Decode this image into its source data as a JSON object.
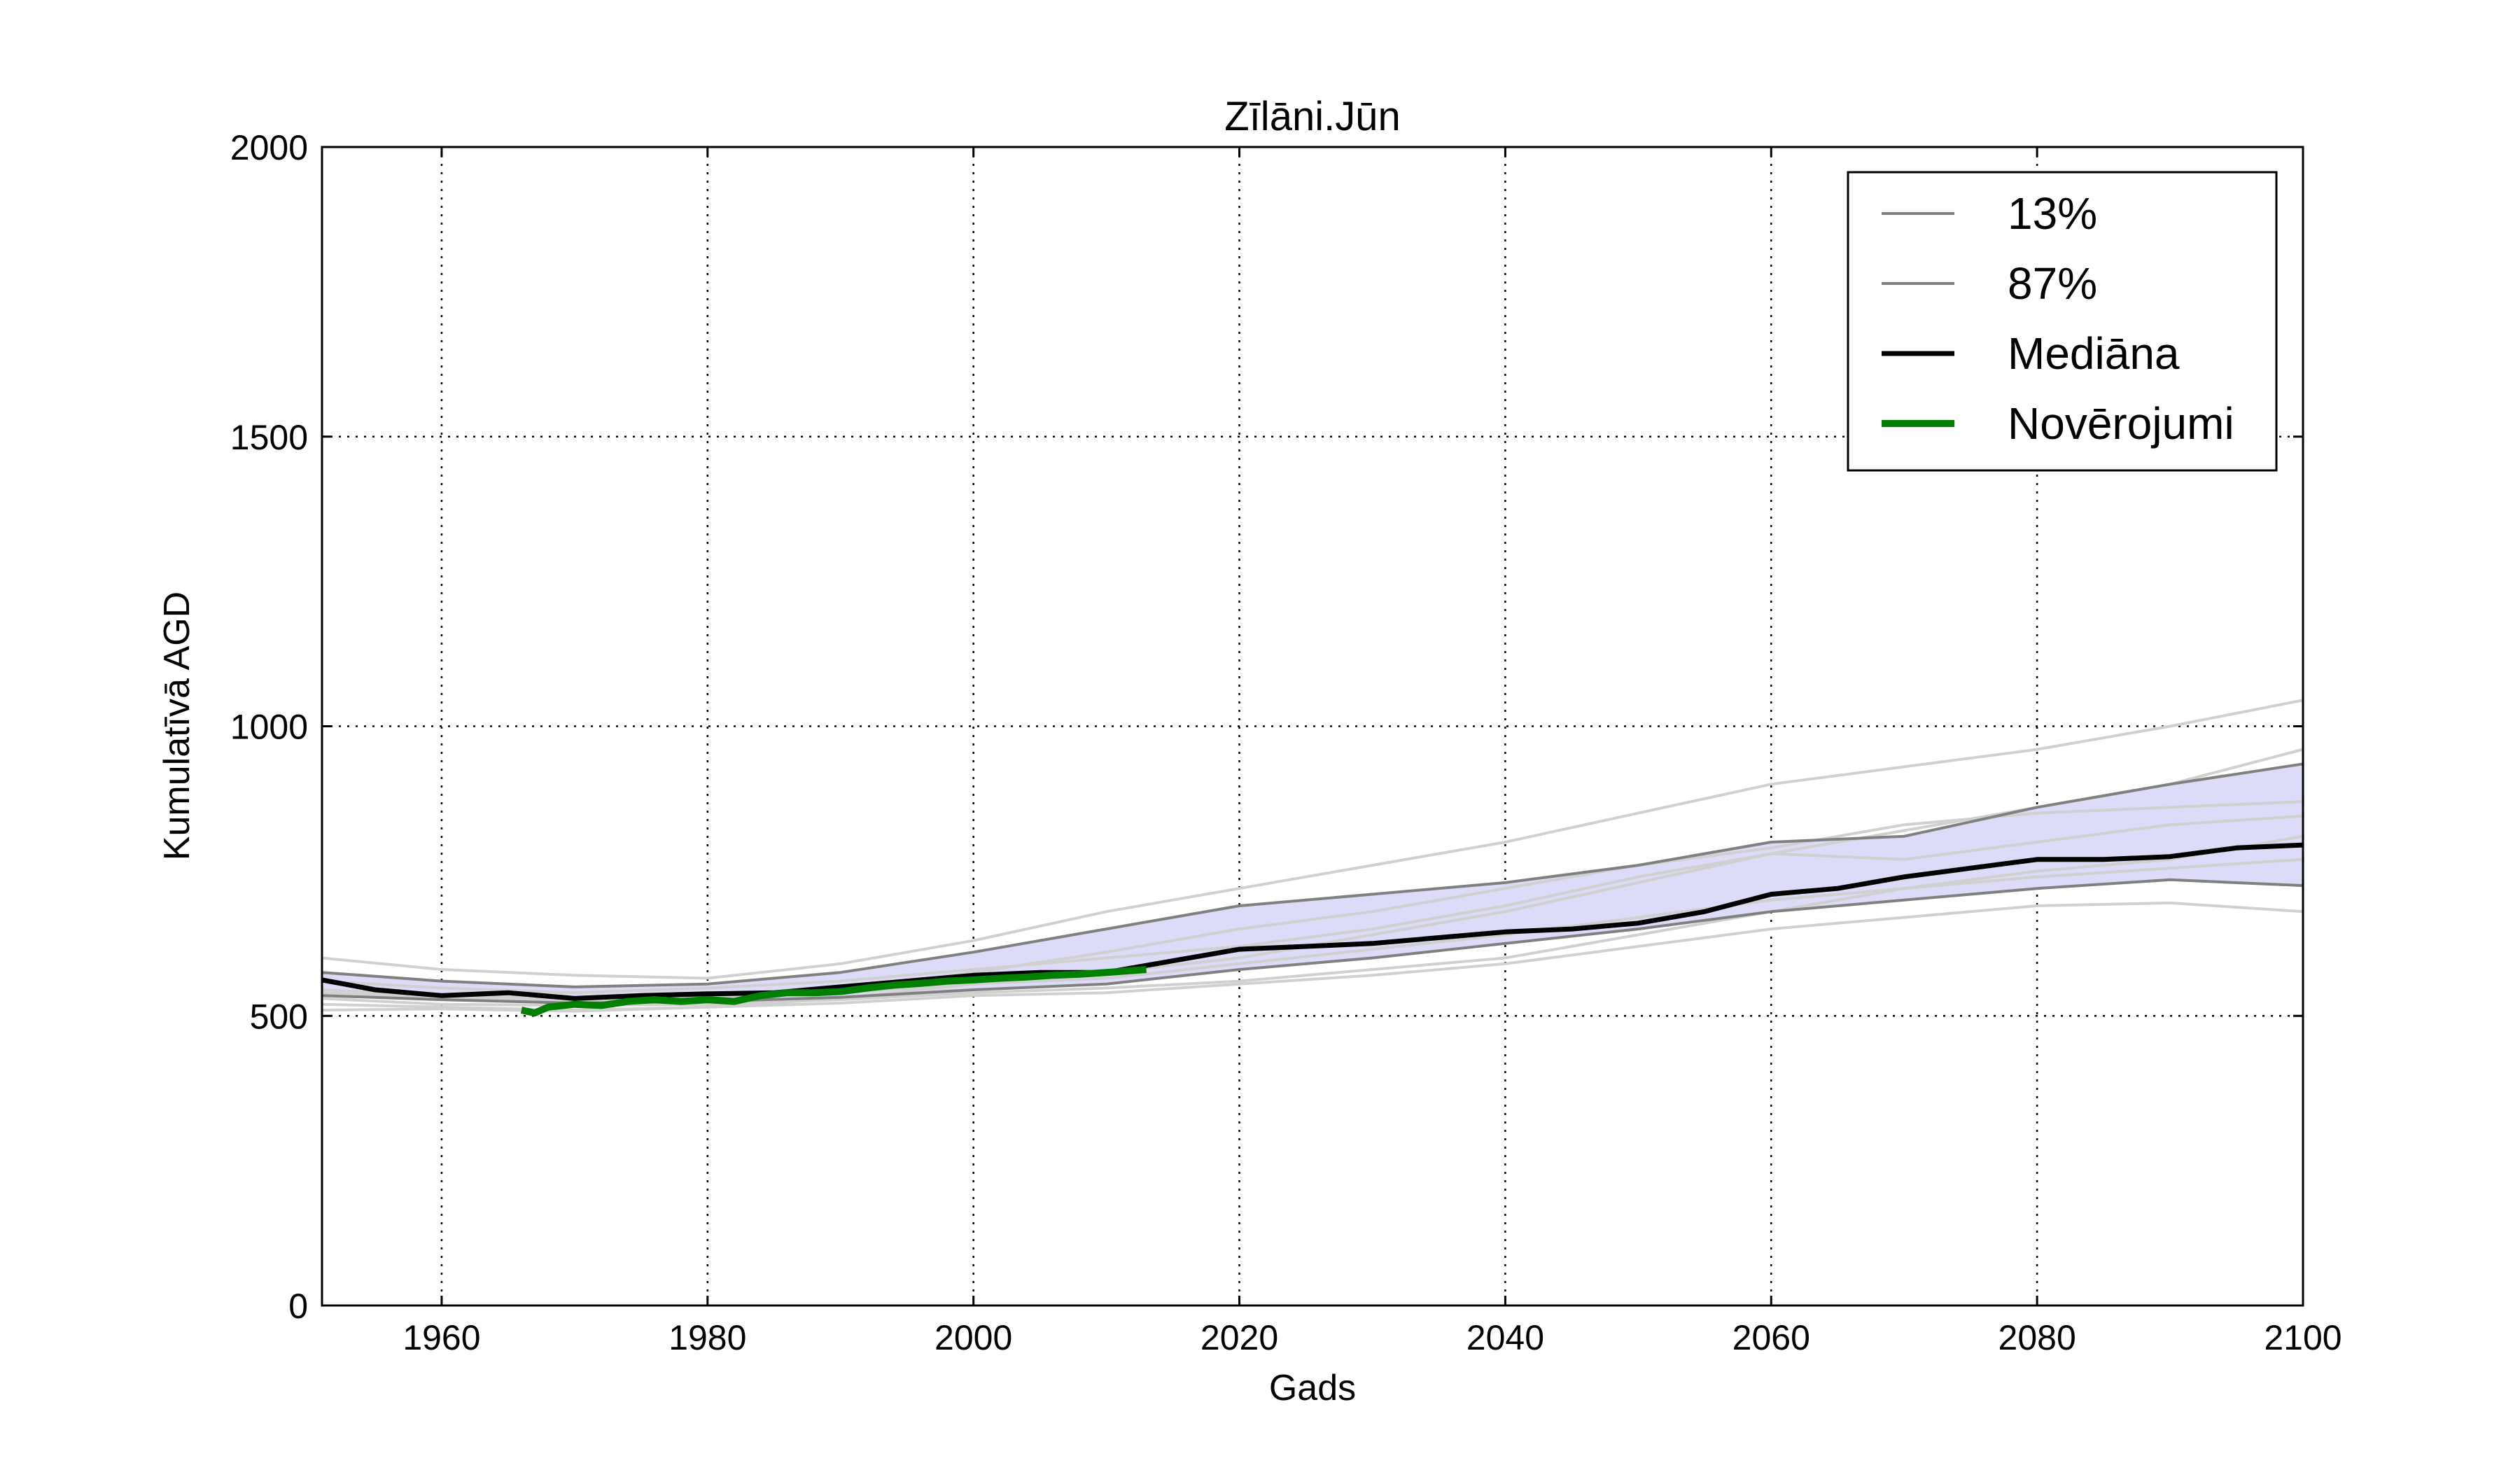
{
  "chart_data": {
    "type": "line",
    "title": "Zīlāni.Jūn",
    "xlabel": "Gads",
    "ylabel": "Kumulatīvā AGD",
    "xlim": [
      1951,
      2100
    ],
    "ylim": [
      0,
      2000
    ],
    "xticks": [
      1960,
      1980,
      2000,
      2020,
      2040,
      2060,
      2080,
      2100
    ],
    "yticks": [
      0,
      500,
      1000,
      1500,
      2000
    ],
    "xtick_labels": [
      "1960",
      "1980",
      "2000",
      "2020",
      "2040",
      "2060",
      "2080",
      "2100"
    ],
    "ytick_labels": [
      "0",
      "500",
      "1000",
      "1500",
      "2000"
    ],
    "grid": true,
    "legend_position": "top-right",
    "band_fill": "#dcdcf8",
    "ensemble_color": "#d0d0d0",
    "colors": {
      "percentile": "#808080",
      "median": "#000000",
      "observations": "#008000"
    },
    "series": [
      {
        "name": "13%",
        "x": [
          1951,
          1960,
          1970,
          1980,
          1990,
          2000,
          2010,
          2020,
          2030,
          2040,
          2050,
          2060,
          2070,
          2080,
          2090,
          2100
        ],
        "values": [
          535,
          528,
          522,
          525,
          532,
          545,
          555,
          580,
          600,
          625,
          650,
          680,
          700,
          720,
          735,
          725
        ]
      },
      {
        "name": "87%",
        "x": [
          1951,
          1960,
          1970,
          1980,
          1990,
          2000,
          2010,
          2020,
          2030,
          2040,
          2050,
          2060,
          2070,
          2080,
          2090,
          2100
        ],
        "values": [
          575,
          560,
          550,
          555,
          575,
          610,
          650,
          690,
          710,
          730,
          760,
          800,
          810,
          860,
          900,
          935
        ]
      },
      {
        "name": "Mediāna",
        "x": [
          1951,
          1955,
          1960,
          1965,
          1970,
          1975,
          1980,
          1985,
          1990,
          1995,
          2000,
          2005,
          2010,
          2015,
          2020,
          2025,
          2030,
          2035,
          2040,
          2045,
          2050,
          2055,
          2060,
          2065,
          2070,
          2075,
          2080,
          2085,
          2090,
          2095,
          2100
        ],
        "values": [
          562,
          545,
          535,
          540,
          530,
          535,
          538,
          540,
          550,
          560,
          570,
          575,
          575,
          595,
          615,
          620,
          625,
          635,
          645,
          650,
          660,
          680,
          710,
          720,
          740,
          755,
          770,
          770,
          775,
          790,
          795
        ]
      },
      {
        "name": "Novērojumi",
        "x": [
          1966,
          1967,
          1968,
          1970,
          1972,
          1974,
          1976,
          1978,
          1980,
          1982,
          1984,
          1986,
          1988,
          1990,
          1992,
          1994,
          1996,
          1998,
          2000,
          2002,
          2004,
          2006,
          2008,
          2010,
          2013
        ],
        "values": [
          510,
          505,
          515,
          520,
          518,
          525,
          528,
          525,
          528,
          525,
          535,
          540,
          540,
          542,
          548,
          553,
          556,
          560,
          562,
          565,
          567,
          570,
          572,
          575,
          580
        ]
      }
    ],
    "ensemble": [
      [
        600,
        580,
        570,
        565,
        590,
        630,
        680,
        720,
        760,
        800,
        850,
        900,
        930,
        960,
        1000,
        1045
      ],
      [
        520,
        515,
        510,
        515,
        530,
        555,
        575,
        600,
        640,
        680,
        730,
        780,
        820,
        860,
        900,
        960
      ],
      [
        545,
        535,
        530,
        535,
        545,
        575,
        610,
        650,
        680,
        720,
        760,
        790,
        830,
        850,
        860,
        870
      ],
      [
        530,
        520,
        518,
        520,
        528,
        540,
        548,
        560,
        580,
        600,
        640,
        680,
        720,
        750,
        770,
        810
      ],
      [
        510,
        512,
        508,
        515,
        522,
        535,
        540,
        555,
        570,
        590,
        620,
        650,
        670,
        690,
        695,
        680
      ],
      [
        560,
        548,
        540,
        548,
        560,
        580,
        600,
        620,
        650,
        690,
        740,
        780,
        770,
        800,
        830,
        845
      ],
      [
        540,
        530,
        525,
        530,
        540,
        555,
        565,
        590,
        615,
        640,
        670,
        700,
        720,
        740,
        755,
        770
      ]
    ],
    "ensemble_x": [
      1951,
      1960,
      1970,
      1980,
      1990,
      2000,
      2010,
      2020,
      2030,
      2040,
      2050,
      2060,
      2070,
      2080,
      2090,
      2100
    ]
  }
}
